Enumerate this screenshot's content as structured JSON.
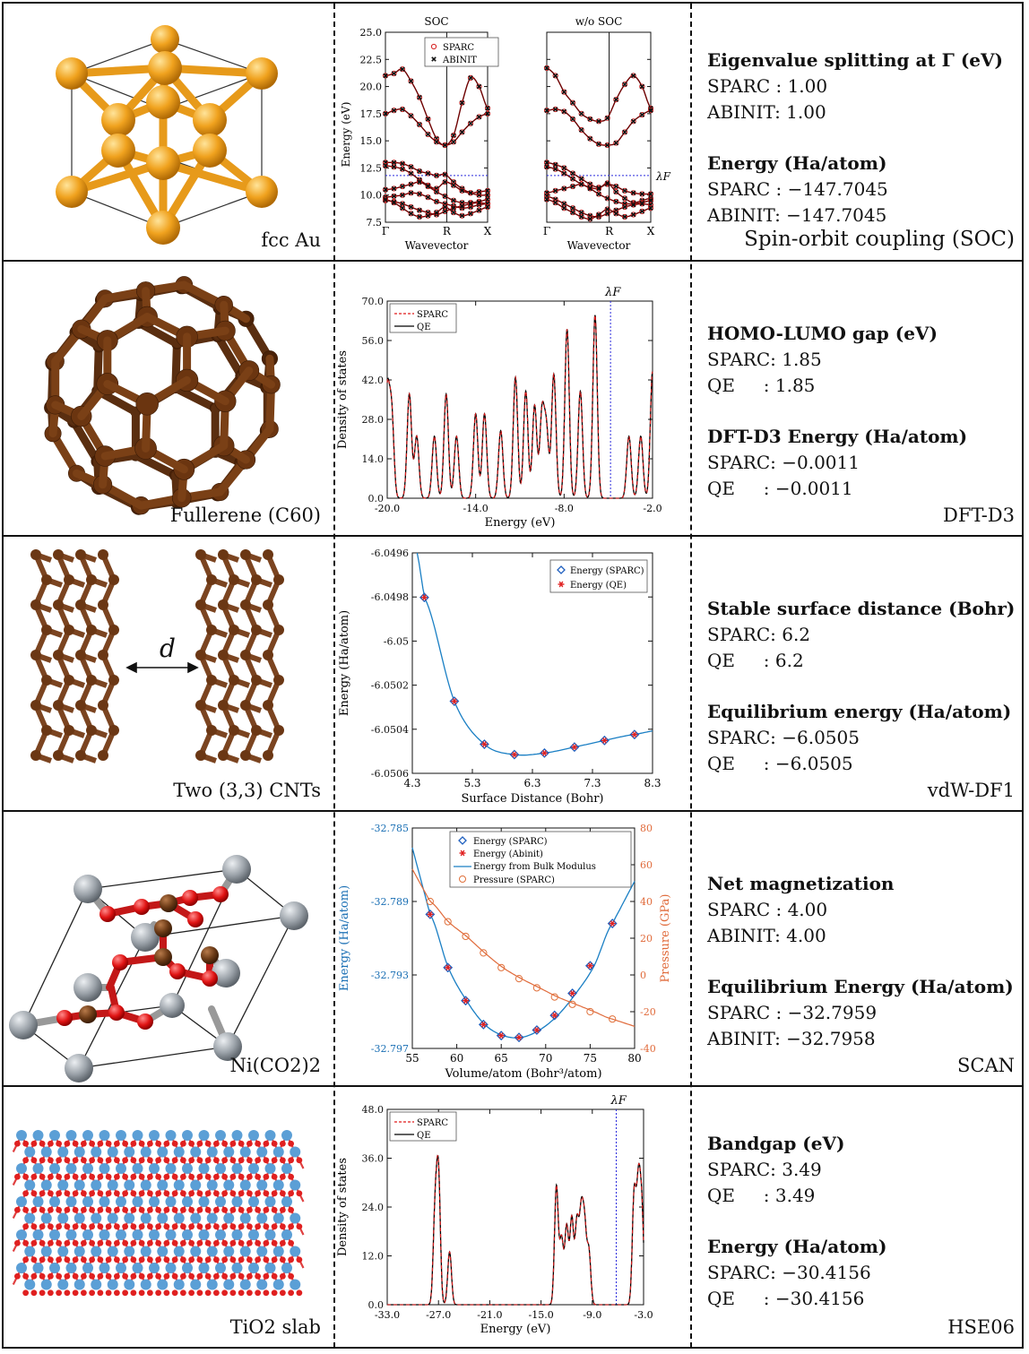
{
  "rows": [
    {
      "id": "au",
      "structure_label": "fcc Au",
      "method": "Spin-orbit coupling (SOC)",
      "info": [
        {
          "heading": "Eigenvalue splitting at Γ (eV)",
          "lines": [
            "SPARC : 1.00",
            "ABINIT: 1.00"
          ]
        },
        {
          "heading": "Energy (Ha/atom)",
          "lines": [
            "SPARC : −147.7045",
            "ABINIT: −147.7045"
          ]
        }
      ]
    },
    {
      "id": "c60",
      "structure_label": "Fullerene (C60)",
      "method": "DFT-D3",
      "info": [
        {
          "heading": "HOMO-LUMO gap (eV)",
          "lines": [
            "SPARC: 1.85",
            "QE     : 1.85"
          ]
        },
        {
          "heading": "DFT-D3 Energy (Ha/atom)",
          "lines": [
            "SPARC: −0.0011",
            "QE     : −0.0011"
          ]
        }
      ]
    },
    {
      "id": "cnt",
      "structure_label": "Two (3,3) CNTs",
      "distance_symbol": "d",
      "method": "vdW-DF1",
      "info": [
        {
          "heading": "Stable surface distance (Bohr)",
          "lines": [
            "SPARC: 6.2",
            "QE     : 6.2"
          ]
        },
        {
          "heading": "Equilibrium energy (Ha/atom)",
          "lines": [
            "SPARC: −6.0505",
            "QE     : −6.0505"
          ]
        }
      ]
    },
    {
      "id": "nico2",
      "structure_label": "Ni(CO2)2",
      "method": "SCAN",
      "info": [
        {
          "heading": "Net magnetization",
          "lines": [
            "SPARC : 4.00",
            "ABINIT: 4.00"
          ]
        },
        {
          "heading": "Equilibrium Energy (Ha/atom)",
          "lines": [
            "SPARC : −32.7959",
            "ABINIT: −32.7958"
          ]
        }
      ]
    },
    {
      "id": "tio2",
      "structure_label": "TiO2 slab",
      "method": "HSE06",
      "info": [
        {
          "heading": "Bandgap (eV)",
          "lines": [
            "SPARC: 3.49",
            "QE     : 3.49"
          ]
        },
        {
          "heading": "Energy (Ha/atom)",
          "lines": [
            "SPARC: −30.4156",
            "QE     : −30.4156"
          ]
        }
      ]
    }
  ],
  "chart_data": [
    {
      "id": "au-bands",
      "type": "line",
      "panels": [
        {
          "title": "SOC",
          "xlabel": "Wavevector",
          "xticks": [
            "Γ",
            "R",
            "X"
          ]
        },
        {
          "title": "w/o SOC",
          "xlabel": "Wavevector",
          "xticks": [
            "Γ",
            "R",
            "X"
          ]
        }
      ],
      "ylabel": "Energy (eV)",
      "ylim": [
        7.5,
        25.0
      ],
      "yticks": [
        "7.5",
        "10.0",
        "12.5",
        "15.0",
        "17.5",
        "20.0",
        "22.5",
        "25.0"
      ],
      "fermi_level": 11.8,
      "fermi_label": "λF",
      "legend": [
        "SPARC",
        "ABINIT"
      ],
      "series": [
        {
          "name": "SPARC",
          "marker": "o",
          "color": "#d62020"
        },
        {
          "name": "ABINIT",
          "marker": "x",
          "color": "#111111"
        }
      ],
      "bands_soc": [
        [
          21.0,
          21.2,
          21.6,
          20.5,
          19.0,
          17.0,
          15.2,
          14.6,
          15.5,
          18.5,
          20.8,
          20.0,
          18.0
        ],
        [
          17.5,
          17.8,
          17.9,
          17.3,
          16.5,
          15.6,
          14.9,
          14.6,
          14.9,
          15.8,
          16.6,
          17.2,
          17.5
        ],
        [
          13.0,
          13.0,
          12.9,
          12.6,
          12.2,
          12.0,
          11.8,
          11.9,
          11.2,
          10.6,
          10.2,
          10.0,
          10.0
        ],
        [
          12.7,
          12.6,
          12.4,
          12.0,
          11.4,
          10.9,
          10.6,
          11.2,
          10.9,
          10.4,
          10.2,
          10.3,
          10.4
        ],
        [
          10.5,
          10.6,
          10.8,
          11.0,
          11.2,
          10.8,
          10.3,
          9.9,
          9.5,
          9.3,
          9.3,
          9.4,
          9.6
        ],
        [
          9.8,
          9.9,
          10.0,
          10.2,
          10.1,
          9.8,
          9.4,
          9.2,
          9.0,
          8.8,
          8.9,
          9.1,
          9.2
        ],
        [
          9.5,
          9.4,
          9.2,
          8.9,
          8.6,
          8.4,
          8.2,
          8.5,
          8.8,
          9.0,
          9.2,
          9.3,
          9.2
        ],
        [
          9.6,
          9.3,
          8.8,
          8.3,
          8.0,
          8.1,
          8.4,
          8.9,
          8.4,
          8.1,
          8.3,
          8.6,
          8.9
        ]
      ],
      "bands_nosoc": [
        [
          21.7,
          21.0,
          19.5,
          18.5,
          17.5,
          17.0,
          16.8,
          17.1,
          18.8,
          20.2,
          21.0,
          20.0,
          18.0
        ],
        [
          17.8,
          17.9,
          17.7,
          17.0,
          16.0,
          15.2,
          14.7,
          14.6,
          14.8,
          15.8,
          16.8,
          17.4,
          17.8
        ],
        [
          13.0,
          12.8,
          12.5,
          12.0,
          11.5,
          11.0,
          10.7,
          11.0,
          10.8,
          10.4,
          10.2,
          10.1,
          10.1
        ],
        [
          12.6,
          12.4,
          12.0,
          11.5,
          11.0,
          10.7,
          10.6,
          11.1,
          10.3,
          9.7,
          9.3,
          9.5,
          9.7
        ],
        [
          10.2,
          10.4,
          10.6,
          10.8,
          11.0,
          10.6,
          10.1,
          9.7,
          9.4,
          9.2,
          9.2,
          9.3,
          9.5
        ],
        [
          9.9,
          9.6,
          9.2,
          8.8,
          8.4,
          8.1,
          8.0,
          8.3,
          8.6,
          8.9,
          9.1,
          9.2,
          9.1
        ],
        [
          9.6,
          9.3,
          8.8,
          8.4,
          8.0,
          7.8,
          8.2,
          8.7,
          8.3,
          8.0,
          8.2,
          8.5,
          8.8
        ]
      ]
    },
    {
      "id": "c60-dos",
      "type": "line",
      "xlabel": "Energy (eV)",
      "ylabel": "Density of states",
      "xlim": [
        -20.0,
        -2.0
      ],
      "ylim": [
        0.0,
        70.0
      ],
      "xticks": [
        "-20.0",
        "-14.0",
        "-8.0",
        "-2.0"
      ],
      "yticks": [
        "0.0",
        "14.0",
        "28.0",
        "42.0",
        "56.0",
        "70.0"
      ],
      "fermi_level": -4.85,
      "fermi_label": "λF",
      "legend": [
        "SPARC",
        "QE"
      ],
      "series": [
        {
          "name": "SPARC",
          "style": "dashed",
          "color": "#e01a1a"
        },
        {
          "name": "QE",
          "style": "solid",
          "color": "#000000"
        }
      ],
      "peaks": [
        [
          -20.0,
          37
        ],
        [
          -19.7,
          30
        ],
        [
          -18.5,
          37
        ],
        [
          -18.0,
          22
        ],
        [
          -16.8,
          22
        ],
        [
          -16.0,
          37
        ],
        [
          -15.3,
          22
        ],
        [
          -14.0,
          30
        ],
        [
          -13.4,
          30
        ],
        [
          -12.3,
          24
        ],
        [
          -11.3,
          43
        ],
        [
          -10.6,
          38
        ],
        [
          -10.0,
          33
        ],
        [
          -9.5,
          30
        ],
        [
          -9.2,
          24
        ],
        [
          -8.7,
          44
        ],
        [
          -7.8,
          60
        ],
        [
          -6.9,
          38
        ],
        [
          -5.9,
          65
        ],
        [
          -3.6,
          22
        ],
        [
          -2.8,
          22
        ],
        [
          -2.0,
          45
        ]
      ],
      "peak_width": 0.15
    },
    {
      "id": "cnt-energy",
      "type": "scatter",
      "xlabel": "Surface Distance (Bohr)",
      "ylabel": "Energy (Ha/atom)",
      "xlim": [
        4.3,
        8.3
      ],
      "ylim": [
        -6.0506,
        -6.0496
      ],
      "xticks": [
        "4.3",
        "5.3",
        "6.3",
        "7.3",
        "8.3"
      ],
      "yticks": [
        "-6.0496",
        "-6.0498",
        "-6.05",
        "-6.0502",
        "-6.0504",
        "-6.0506"
      ],
      "legend": [
        "Energy (SPARC)",
        "Energy (QE)"
      ],
      "x": [
        4.5,
        5.0,
        5.5,
        6.0,
        6.5,
        7.0,
        7.5,
        8.0
      ],
      "series": [
        {
          "name": "Energy (SPARC)",
          "marker": "diamond",
          "color": "#1f5fbf",
          "values": [
            -6.049802,
            -6.050273,
            -6.050468,
            -6.050515,
            -6.050508,
            -6.050481,
            -6.050451,
            -6.050424
          ]
        },
        {
          "name": "Energy (QE)",
          "marker": "star",
          "color": "#e02020",
          "values": [
            -6.049802,
            -6.050273,
            -6.050468,
            -6.050515,
            -6.050508,
            -6.050481,
            -6.050451,
            -6.050424
          ]
        }
      ],
      "fit": {
        "color": "#1a7fc4"
      }
    },
    {
      "id": "nico2-eos",
      "type": "scatter",
      "xlabel": "Volume/atom (Bohr³/atom)",
      "ylabel": "Energy (Ha/atom)",
      "y2label": "Pressure (GPa)",
      "xlim": [
        55,
        80
      ],
      "ylim": [
        -32.797,
        -32.785
      ],
      "y2lim": [
        -40,
        80
      ],
      "xticks": [
        "55",
        "60",
        "65",
        "70",
        "75",
        "80"
      ],
      "yticks": [
        "-32.785",
        "-32.789",
        "-32.793",
        "-32.797"
      ],
      "y2ticks": [
        "80",
        "60",
        "40",
        "20",
        "0",
        "-20",
        "-40"
      ],
      "legend": [
        "Energy (SPARC)",
        "Energy (Abinit)",
        "Energy from Bulk Modulus",
        "Pressure (SPARC)"
      ],
      "x": [
        57.0,
        59.0,
        61.0,
        63.0,
        65.0,
        67.0,
        69.0,
        71.0,
        73.0,
        75.0,
        77.5
      ],
      "series": [
        {
          "name": "Energy (SPARC)",
          "marker": "diamond",
          "color": "#1f5fbf",
          "values": [
            -32.7897,
            -32.7926,
            -32.7944,
            -32.7957,
            -32.7963,
            -32.7964,
            -32.796,
            -32.7952,
            -32.794,
            -32.7925,
            -32.7902
          ]
        },
        {
          "name": "Energy (Abinit)",
          "marker": "star",
          "color": "#e02020",
          "values": [
            -32.7897,
            -32.7926,
            -32.7944,
            -32.7957,
            -32.7963,
            -32.7964,
            -32.796,
            -32.7952,
            -32.794,
            -32.7925,
            -32.7902
          ]
        },
        {
          "name": "Pressure (SPARC)",
          "marker": "circle",
          "color": "#e0703a",
          "axis": "right",
          "values": [
            40,
            29,
            21,
            12,
            4,
            -2,
            -7,
            -12,
            -16,
            -20,
            -24
          ]
        }
      ],
      "fit": {
        "name": "Energy from Bulk Modulus",
        "color": "#1a7fc4"
      },
      "pressure_fit_color": "#e06a3a",
      "left_axis_color": "#1a6fb4",
      "right_axis_color": "#e06a3a"
    },
    {
      "id": "tio2-dos",
      "type": "line",
      "xlabel": "Energy (eV)",
      "ylabel": "Density of states",
      "xlim": [
        -33.0,
        -3.0
      ],
      "ylim": [
        0.0,
        48.0
      ],
      "xticks": [
        "-33.0",
        "-27.0",
        "-21.0",
        "-15.0",
        "-9.0",
        "-3.0"
      ],
      "yticks": [
        "0.0",
        "12.0",
        "24.0",
        "36.0",
        "48.0"
      ],
      "fermi_level": -6.2,
      "fermi_label": "λF",
      "legend": [
        "SPARC",
        "QE"
      ],
      "series": [
        {
          "name": "SPARC",
          "style": "dashed",
          "color": "#e01a1a"
        },
        {
          "name": "QE",
          "style": "solid",
          "color": "#000000"
        }
      ],
      "peaks": [
        [
          -27.4,
          22
        ],
        [
          -27.0,
          31
        ],
        [
          -25.7,
          13
        ],
        [
          -13.2,
          29
        ],
        [
          -12.6,
          16
        ],
        [
          -12.0,
          19
        ],
        [
          -11.4,
          21
        ],
        [
          -10.8,
          20
        ],
        [
          -10.3,
          21
        ],
        [
          -9.9,
          18
        ],
        [
          -9.4,
          13
        ],
        [
          -4.1,
          27
        ],
        [
          -3.6,
          28
        ],
        [
          -3.2,
          22
        ]
      ],
      "peak_width": 0.22
    }
  ]
}
